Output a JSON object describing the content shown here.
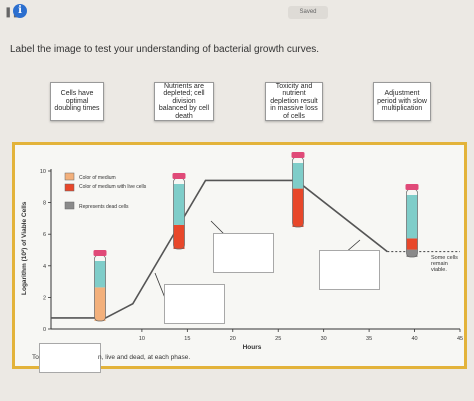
{
  "header": {
    "saved_label": "Saved"
  },
  "prompt": "Label the image to test your understanding of bacterial growth curves.",
  "labels": [
    {
      "text": "Cells have optimal doubling times"
    },
    {
      "text": "Nutrients are depleted; cell division balanced by cell death"
    },
    {
      "text": "Toxicity and nutrient depletion result in massive loss of cells"
    },
    {
      "text": "Adjustment period with slow multiplication"
    }
  ],
  "chart": {
    "y_axis_label": "Logarithm (10²) of Viable Cells",
    "x_axis_label": "Hours",
    "legend": [
      {
        "label": "Color of medium",
        "color": "#f3b07b"
      },
      {
        "label": "Color of medium with live cells",
        "color": "#e8472a"
      },
      {
        "label": "Represents dead cells",
        "color": "#8a8a8a"
      }
    ],
    "tube_colors": {
      "medium": "#f3b07b",
      "live": "#e8472a",
      "dead": "#8a8a8a",
      "clear": "#7fcdc9",
      "cap": "#e04a78"
    },
    "annotation": "Some cells remain viable."
  },
  "chart_data": {
    "type": "line",
    "x_ticks": [
      10,
      15,
      20,
      25,
      30,
      35,
      40,
      45
    ],
    "y_ticks": [
      0,
      2,
      4,
      6,
      8,
      10
    ],
    "xlabel": "Hours",
    "ylabel": "Logarithm (10²) of Viable Cells",
    "xlim": [
      0,
      45
    ],
    "ylim": [
      0,
      10
    ],
    "series": [
      {
        "x": [
          0,
          6,
          9,
          17,
          27,
          37,
          45
        ],
        "y": [
          0.7,
          0.7,
          1.6,
          9.4,
          9.4,
          4.9,
          4.9
        ]
      }
    ]
  },
  "bottom": {
    "left_text": "To",
    "right_text": "n, live and dead, at each phase."
  }
}
